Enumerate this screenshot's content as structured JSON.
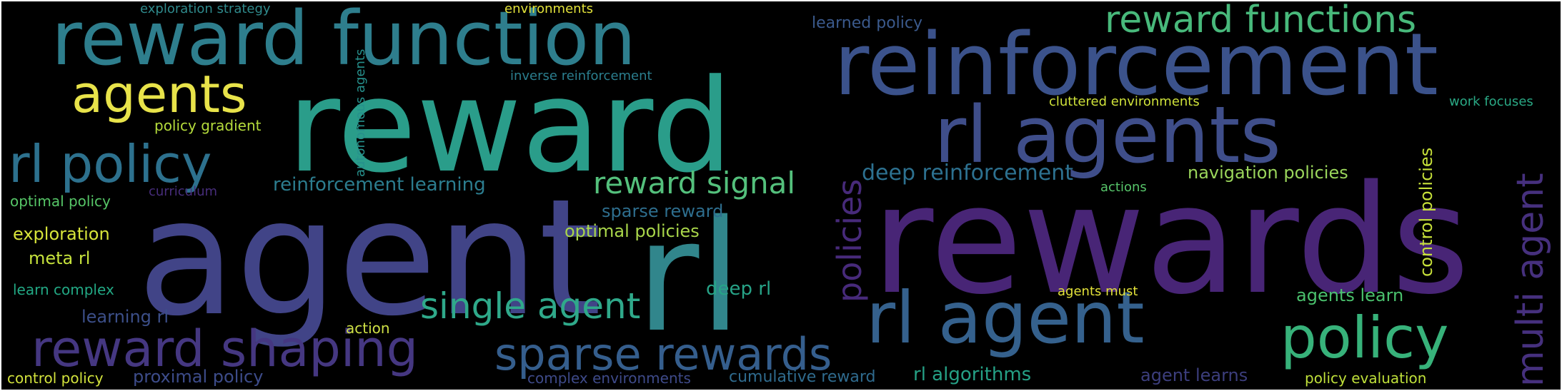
{
  "palette": {
    "purple": "#482576",
    "indigo": "#433e85",
    "blue": "#3b528b",
    "steel": "#33638d",
    "teal_blue": "#2d708e",
    "teal": "#2a7f8e",
    "teal_green": "#24968b",
    "green_teal": "#21a685",
    "green": "#44bf70",
    "light_green": "#7ad151",
    "yellow_green": "#bddf26",
    "yellow": "#fde725"
  },
  "words": [
    {
      "text": "agent",
      "color": "#414487"
    },
    {
      "text": "rewards",
      "color": "#482576"
    },
    {
      "text": "reward",
      "color": "#2a9d8a"
    },
    {
      "text": "rl",
      "color": "#31868c"
    },
    {
      "text": "reinforcement",
      "color": "#3b528b"
    },
    {
      "text": "reward function",
      "color": "#2e7e8d"
    },
    {
      "text": "rl agents",
      "color": "#3f4e8a"
    },
    {
      "text": "rl agent",
      "color": "#35618d"
    },
    {
      "text": "agents",
      "color": "#e8e34a"
    },
    {
      "text": "rl policy",
      "color": "#2d718e"
    },
    {
      "text": "reward shaping",
      "color": "#453781"
    },
    {
      "text": "sparse rewards",
      "color": "#355e8d"
    },
    {
      "text": "policy",
      "color": "#37b27a"
    },
    {
      "text": "reward functions",
      "color": "#48b97b"
    },
    {
      "text": "single agent",
      "color": "#2fa98a"
    },
    {
      "text": "reward signal",
      "color": "#54c07c"
    },
    {
      "text": "deep reinforcement",
      "color": "#2d7190"
    },
    {
      "text": "reinforcement learning",
      "color": "#2c7d8f"
    },
    {
      "text": "sparse reward",
      "color": "#2e6e8e"
    },
    {
      "text": "optimal policies",
      "color": "#a9d64a"
    },
    {
      "text": "deep rl",
      "color": "#27a387"
    },
    {
      "text": "navigation policies",
      "color": "#9ad55b"
    },
    {
      "text": "agents learn",
      "color": "#4ac16d"
    },
    {
      "text": "rl algorithms",
      "color": "#25a085"
    },
    {
      "text": "agent learns",
      "color": "#3c3e7d"
    },
    {
      "text": "cumulative reward",
      "color": "#2f6b8e"
    },
    {
      "text": "complex environments",
      "color": "#3e4a89"
    },
    {
      "text": "proximal policy",
      "color": "#3d4c8a"
    },
    {
      "text": "control policy",
      "color": "#d2e23c"
    },
    {
      "text": "learning rl",
      "color": "#3c4f89"
    },
    {
      "text": "action",
      "color": "#cfe146"
    },
    {
      "text": "learn complex",
      "color": "#22a884"
    },
    {
      "text": "meta rl",
      "color": "#c6e23c"
    },
    {
      "text": "exploration",
      "color": "#d7e43a"
    },
    {
      "text": "optimal policy",
      "color": "#56c667"
    },
    {
      "text": "curriculum",
      "color": "#472d7b"
    },
    {
      "text": "policy gradient",
      "color": "#b5dc3c"
    },
    {
      "text": "inverse reinforcement",
      "color": "#2b7e8e"
    },
    {
      "text": "learned policy",
      "color": "#3b5a8d"
    },
    {
      "text": "exploration strategy",
      "color": "#2f8a8c"
    },
    {
      "text": "environments",
      "color": "#e2e23a"
    },
    {
      "text": "cluttered environments",
      "color": "#cfe23a"
    },
    {
      "text": "work focuses",
      "color": "#2aa985"
    },
    {
      "text": "actions",
      "color": "#57c56a"
    },
    {
      "text": "agents must",
      "color": "#e3e23a"
    },
    {
      "text": "policy evaluation",
      "color": "#bfe03a"
    },
    {
      "text": "autonomous agents",
      "color": "#26908c"
    },
    {
      "text": "policies",
      "color": "#472a7a"
    },
    {
      "text": "multi agent",
      "color": "#46307e"
    },
    {
      "text": "control policies",
      "color": "#c7e13a"
    }
  ]
}
